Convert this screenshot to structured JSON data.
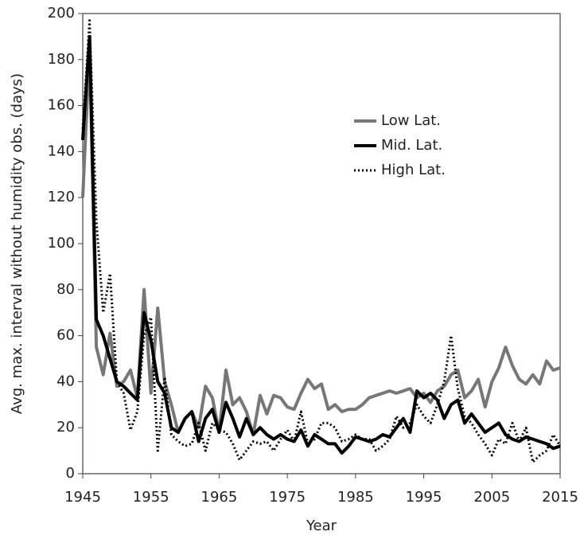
{
  "chart_data": {
    "type": "line",
    "xlabel": "Year",
    "ylabel": "Avg. max. interval without humidity obs. (days)",
    "x": [
      1945,
      1946,
      1947,
      1948,
      1949,
      1950,
      1951,
      1952,
      1953,
      1954,
      1955,
      1956,
      1957,
      1958,
      1959,
      1960,
      1961,
      1962,
      1963,
      1964,
      1965,
      1966,
      1967,
      1968,
      1969,
      1970,
      1971,
      1972,
      1973,
      1974,
      1975,
      1976,
      1977,
      1978,
      1979,
      1980,
      1981,
      1982,
      1983,
      1984,
      1985,
      1986,
      1987,
      1988,
      1989,
      1990,
      1991,
      1992,
      1993,
      1994,
      1995,
      1996,
      1997,
      1998,
      1999,
      2000,
      2001,
      2002,
      2003,
      2004,
      2005,
      2006,
      2007,
      2008,
      2009,
      2010,
      2011,
      2012,
      2013,
      2014,
      2015
    ],
    "series": [
      {
        "name": "Low Lat.",
        "color": "#777777",
        "line_style": "solid",
        "values": [
          120,
          185,
          55,
          43,
          61,
          38,
          40,
          45,
          33,
          80,
          35,
          72,
          40,
          30,
          18,
          24,
          27,
          20,
          38,
          33,
          18,
          45,
          30,
          33,
          27,
          17,
          34,
          26,
          34,
          33,
          29,
          28,
          35,
          41,
          37,
          39,
          28,
          30,
          27,
          28,
          28,
          30,
          33,
          34,
          35,
          36,
          35,
          36,
          37,
          33,
          35,
          31,
          36,
          38,
          43,
          45,
          33,
          36,
          41,
          29,
          40,
          46,
          55,
          47,
          41,
          39,
          43,
          39,
          49,
          45,
          46
        ]
      },
      {
        "name": "Mid. Lat.",
        "color": "#000000",
        "line_style": "solid",
        "values": [
          145,
          190,
          67,
          60,
          50,
          40,
          38,
          35,
          32,
          70,
          58,
          40,
          35,
          20,
          18,
          24,
          27,
          14,
          24,
          28,
          18,
          31,
          24,
          16,
          24,
          17,
          20,
          17,
          15,
          17,
          15,
          14,
          19,
          12,
          17,
          15,
          13,
          13,
          9,
          12,
          16,
          15,
          14,
          15,
          17,
          16,
          20,
          24,
          18,
          36,
          33,
          35,
          32,
          24,
          30,
          32,
          22,
          26,
          22,
          18,
          20,
          22,
          17,
          15,
          14,
          16,
          15,
          14,
          13,
          11,
          12
        ]
      },
      {
        "name": "High Lat.",
        "color": "#000000",
        "line_style": "dotted",
        "values": [
          150,
          197,
          110,
          70,
          87,
          40,
          35,
          19,
          27,
          60,
          68,
          10,
          42,
          17,
          14,
          12,
          13,
          22,
          10,
          22,
          19,
          18,
          13,
          6,
          10,
          14,
          13,
          14,
          10,
          15,
          19,
          14,
          27,
          13,
          15,
          22,
          22,
          20,
          14,
          15,
          17,
          15,
          15,
          10,
          12,
          15,
          25,
          20,
          22,
          30,
          25,
          22,
          30,
          40,
          60,
          37,
          25,
          22,
          17,
          13,
          8,
          15,
          13,
          22,
          14,
          20,
          5,
          8,
          10,
          17,
          12
        ]
      }
    ],
    "xlim": [
      1945,
      2015
    ],
    "xticks": [
      1945,
      1955,
      1965,
      1975,
      1985,
      1995,
      2005,
      2015
    ],
    "ylim": [
      0,
      200
    ],
    "yticks": [
      0,
      20,
      40,
      60,
      80,
      100,
      120,
      140,
      160,
      180,
      200
    ],
    "grid": false,
    "legend": "upper right"
  }
}
